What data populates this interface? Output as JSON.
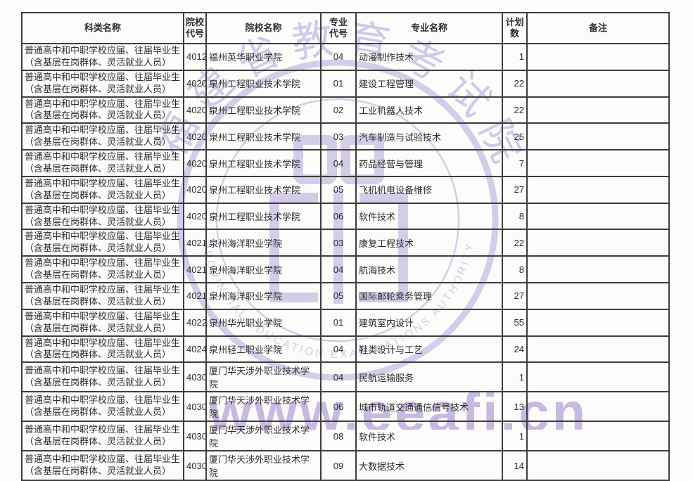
{
  "table": {
    "headers": {
      "category": "科类名称",
      "college_code": "院校\n代号",
      "college_name": "院校名称",
      "major_code": "专业\n代号",
      "major_name": "专业名称",
      "plan_count": "计划\n数",
      "remark": "备注"
    },
    "rows": [
      {
        "category": "普通高中和中职学校应届、往届毕业生\n（含基层在岗群体、灵活就业人员）",
        "college_code": "4012",
        "college_name": "福州英华职业学院",
        "major_code": "04",
        "major_name": "动漫制作技术",
        "plan_count": "1",
        "remark": ""
      },
      {
        "category": "普通高中和中职学校应届、往届毕业生\n（含基层在岗群体、灵活就业人员）",
        "college_code": "4020",
        "college_name": "泉州工程职业技术学院",
        "major_code": "01",
        "major_name": "建设工程管理",
        "plan_count": "22",
        "remark": ""
      },
      {
        "category": "普通高中和中职学校应届、往届毕业生\n（含基层在岗群体、灵活就业人员）",
        "college_code": "4020",
        "college_name": "泉州工程职业技术学院",
        "major_code": "02",
        "major_name": "工业机器人技术",
        "plan_count": "22",
        "remark": ""
      },
      {
        "category": "普通高中和中职学校应届、往届毕业生\n（含基层在岗群体、灵活就业人员）",
        "college_code": "4020",
        "college_name": "泉州工程职业技术学院",
        "major_code": "03",
        "major_name": "汽车制造与试验技术",
        "plan_count": "25",
        "remark": ""
      },
      {
        "category": "普通高中和中职学校应届、往届毕业生\n（含基层在岗群体、灵活就业人员）",
        "college_code": "4020",
        "college_name": "泉州工程职业技术学院",
        "major_code": "04",
        "major_name": "药品经营与管理",
        "plan_count": "7",
        "remark": ""
      },
      {
        "category": "普通高中和中职学校应届、往届毕业生\n（含基层在岗群体、灵活就业人员）",
        "college_code": "4020",
        "college_name": "泉州工程职业技术学院",
        "major_code": "05",
        "major_name": "飞机机电设备维修",
        "plan_count": "27",
        "remark": ""
      },
      {
        "category": "普通高中和中职学校应届、往届毕业生\n（含基层在岗群体、灵活就业人员）",
        "college_code": "4020",
        "college_name": "泉州工程职业技术学院",
        "major_code": "06",
        "major_name": "软件技术",
        "plan_count": "8",
        "remark": ""
      },
      {
        "category": "普通高中和中职学校应届、往届毕业生\n（含基层在岗群体、灵活就业人员）",
        "college_code": "4021",
        "college_name": "泉州海洋职业学院",
        "major_code": "03",
        "major_name": "康复工程技术",
        "plan_count": "22",
        "remark": ""
      },
      {
        "category": "普通高中和中职学校应届、往届毕业生\n（含基层在岗群体、灵活就业人员）",
        "college_code": "4021",
        "college_name": "泉州海洋职业学院",
        "major_code": "04",
        "major_name": "航海技术",
        "plan_count": "8",
        "remark": ""
      },
      {
        "category": "普通高中和中职学校应届、往届毕业生\n（含基层在岗群体、灵活就业人员）",
        "college_code": "4021",
        "college_name": "泉州海洋职业学院",
        "major_code": "05",
        "major_name": "国际邮轮乘务管理",
        "plan_count": "27",
        "remark": ""
      },
      {
        "category": "普通高中和中职学校应届、往届毕业生\n（含基层在岗群体、灵活就业人员）",
        "college_code": "4022",
        "college_name": "泉州华光职业学院",
        "major_code": "01",
        "major_name": "建筑室内设计",
        "plan_count": "55",
        "remark": ""
      },
      {
        "category": "普通高中和中职学校应届、往届毕业生\n（含基层在岗群体、灵活就业人员）",
        "college_code": "4024",
        "college_name": "泉州轻工职业学院",
        "major_code": "04",
        "major_name": "鞋类设计与工艺",
        "plan_count": "24",
        "remark": ""
      },
      {
        "category": "普通高中和中职学校应届、往届毕业生\n（含基层在岗群体、灵活就业人员）",
        "college_code": "4030",
        "college_name": "厦门华天涉外职业技术学院",
        "major_code": "04",
        "major_name": "民航运输服务",
        "plan_count": "1",
        "remark": ""
      },
      {
        "category": "普通高中和中职学校应届、往届毕业生\n（含基层在岗群体、灵活就业人员）",
        "college_code": "4030",
        "college_name": "厦门华天涉外职业技术学院",
        "major_code": "06",
        "major_name": "城市轨道交通通信信号技术",
        "plan_count": "13",
        "remark": ""
      },
      {
        "category": "普通高中和中职学校应届、往届毕业生\n（含基层在岗群体、灵活就业人员）",
        "college_code": "4030",
        "college_name": "厦门华天涉外职业技术学院",
        "major_code": "08",
        "major_name": "软件技术",
        "plan_count": "1",
        "remark": ""
      },
      {
        "category": "普通高中和中职学校应届、往届毕业生\n（含基层在岗群体、灵活就业人员）",
        "college_code": "4030",
        "college_name": "厦门华天涉外职业技术学院",
        "major_code": "09",
        "major_name": "大数据技术",
        "plan_count": "14",
        "remark": ""
      }
    ]
  },
  "watermark": {
    "seal_chars": [
      "福",
      "建",
      "省",
      "教",
      "育",
      "考",
      "试",
      "院"
    ],
    "ring_text": "PROVINCIAL EDUCATION EXAMINATIONS AUTHORITY",
    "url_text": "www.eeafj.cn",
    "color": "#cbbfe5",
    "url_color": "#c2b2de"
  }
}
